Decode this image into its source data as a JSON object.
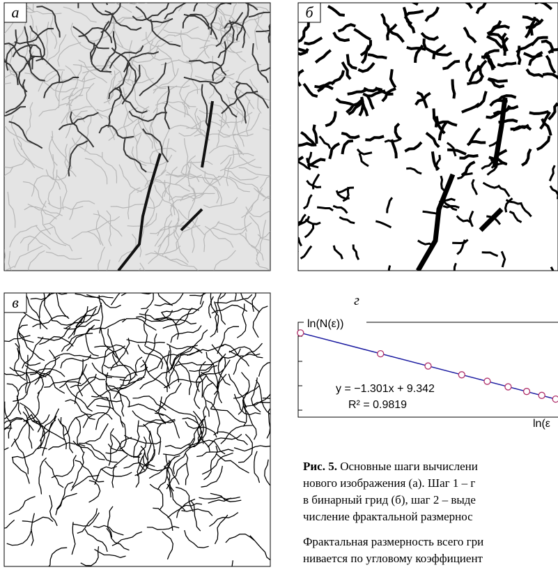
{
  "panels": {
    "a": "а",
    "b": "б",
    "c": "в",
    "d": "г"
  },
  "chart_data": {
    "type": "scatter",
    "y_label": "ln(N(ε))",
    "x_label": "ln(ε",
    "equation": "y = −1.301x + 9.342",
    "r2_label": "R² = 0.9819",
    "fit": {
      "slope": -1.301,
      "intercept": 9.342,
      "color": "#1a1aa0"
    },
    "x": [
      0,
      0.69,
      1.1,
      1.39,
      1.61,
      1.79,
      1.95,
      2.08,
      2.2
    ],
    "values": [
      9.34,
      8.44,
      7.91,
      7.53,
      7.25,
      7.01,
      6.81,
      6.64,
      6.48
    ],
    "color": "#b0306a",
    "xlim": [
      -0.02,
      2.22
    ],
    "ylim": [
      5.7,
      9.8
    ]
  },
  "caption": {
    "lead": "Рис. 5.",
    "lines": [
      "Основные шаги вычислени",
      "нового изображения (а). Шаг 1 – г",
      "в бинарный грид (б), шаг 2 – выде",
      "числение фрактальной размернос"
    ]
  },
  "paragraph": [
    "Фрактальная размерность всего гри",
    "нивается по угловому коэффициент"
  ]
}
